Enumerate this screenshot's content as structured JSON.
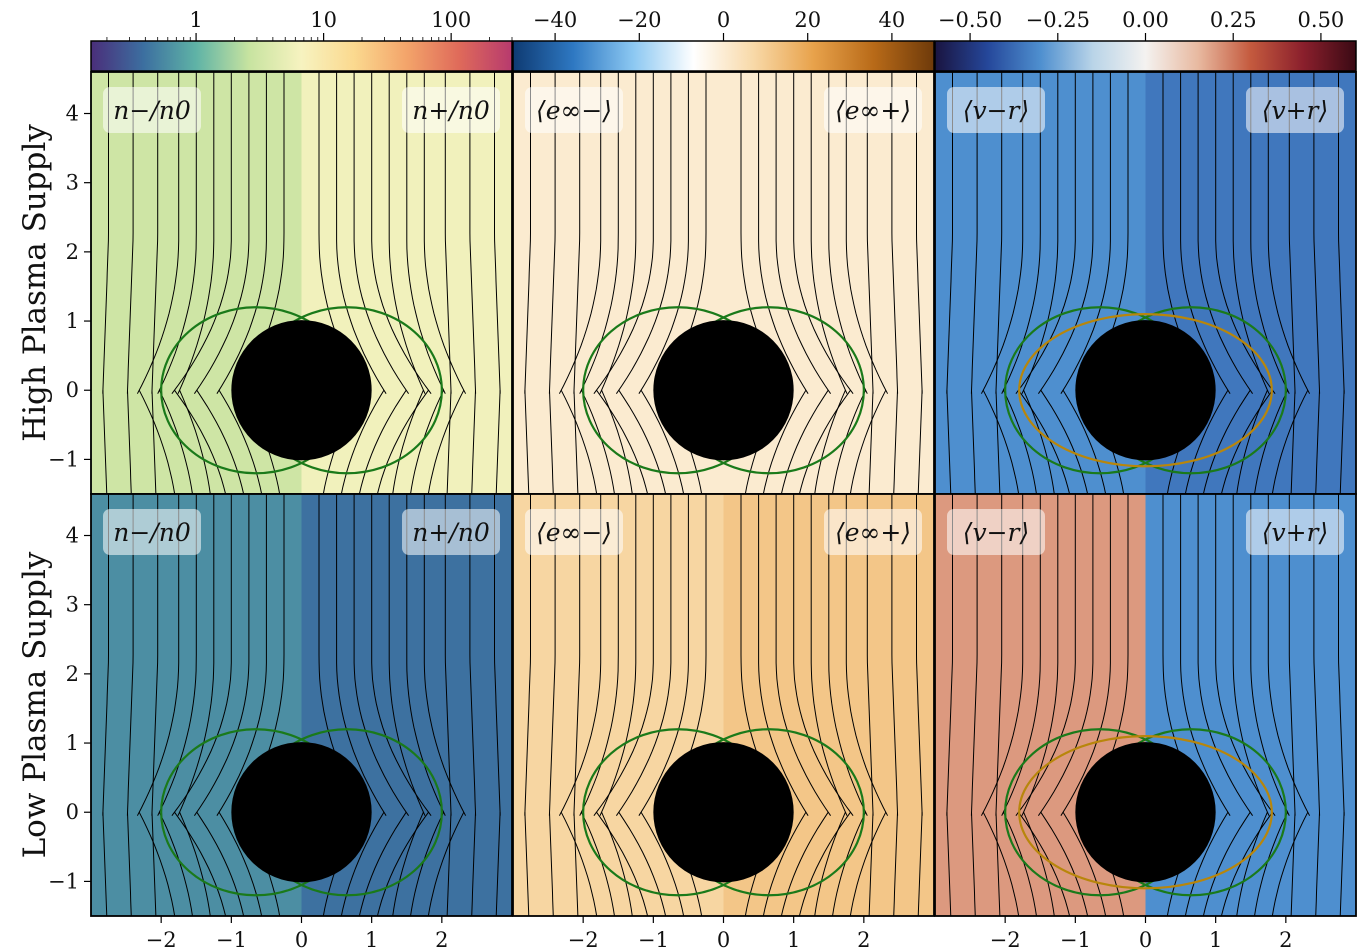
{
  "chart_data": {
    "type": "heatmap",
    "row_titles": [
      "High Plasma Supply",
      "Low Plasma Supply"
    ],
    "x_ticks": [
      -2,
      -1,
      0,
      1,
      2
    ],
    "xlim": [
      -3.0,
      3.0
    ],
    "y_ticks": [
      -1,
      0,
      1,
      2,
      3,
      4
    ],
    "ylim": [
      -1.5,
      4.6
    ],
    "black_hole_radius": 1.0,
    "colorbars": [
      {
        "name": "density",
        "scale": "log",
        "range": [
          0.15,
          300
        ],
        "ticks": [
          "1",
          "10",
          "100"
        ],
        "ticks_values": [
          1,
          10,
          100
        ],
        "colors": [
          "#4a2e7a",
          "#3c6fa0",
          "#5fb3a6",
          "#c7e3a0",
          "#f7f3c0",
          "#fbd98f",
          "#f3a46a",
          "#df6a5a",
          "#b73a6e"
        ]
      },
      {
        "name": "energy-at-infinity",
        "scale": "linear",
        "range": [
          -50,
          50
        ],
        "ticks": [
          "−40",
          "−20",
          "0",
          "20",
          "40"
        ],
        "ticks_values": [
          -40,
          -20,
          0,
          20,
          40
        ],
        "colors": [
          "#0e3a72",
          "#2e78c2",
          "#8cc8f2",
          "#ffffff",
          "#f8d9a8",
          "#e8a24b",
          "#b86a18",
          "#6e3a0a"
        ]
      },
      {
        "name": "radial-velocity",
        "scale": "linear",
        "range": [
          -0.6,
          0.6
        ],
        "ticks": [
          "−0.50",
          "−0.25",
          "0.00",
          "0.25",
          "0.50"
        ],
        "ticks_values": [
          -0.5,
          -0.25,
          0,
          0.25,
          0.5
        ],
        "colors": [
          "#1a1440",
          "#25479a",
          "#4e8fcf",
          "#b9d4e8",
          "#f4f2f0",
          "#e8b9a0",
          "#c45a3e",
          "#8a1f2c",
          "#3a0a14"
        ]
      }
    ],
    "panel_labels": {
      "density": [
        "n−/n0",
        "n+/n0"
      ],
      "energy": [
        "⟨e∞−⟩",
        "⟨e∞+⟩"
      ],
      "velocity": [
        "⟨v−r⟩",
        "⟨v+r⟩"
      ]
    },
    "panels": [
      {
        "row": "High Plasma Supply",
        "quantity": "density",
        "left_level": 3,
        "right_level": 6
      },
      {
        "row": "High Plasma Supply",
        "quantity": "energy",
        "left_level": 0.5,
        "right_level": 0.5
      },
      {
        "row": "High Plasma Supply",
        "quantity": "velocity",
        "left_level": -0.3,
        "right_level": -0.35
      },
      {
        "row": "Low Plasma Supply",
        "quantity": "density",
        "left_level": 0.6,
        "right_level": 0.4
      },
      {
        "row": "Low Plasma Supply",
        "quantity": "energy",
        "left_level": 8,
        "right_level": 12
      },
      {
        "row": "Low Plasma Supply",
        "quantity": "velocity",
        "left_level": 0.2,
        "right_level": -0.3
      }
    ],
    "overlays": {
      "field_lines": "black",
      "ergosphere_contour": "#1a7a1a",
      "velocity_zero_contour": "#b8860b"
    }
  }
}
